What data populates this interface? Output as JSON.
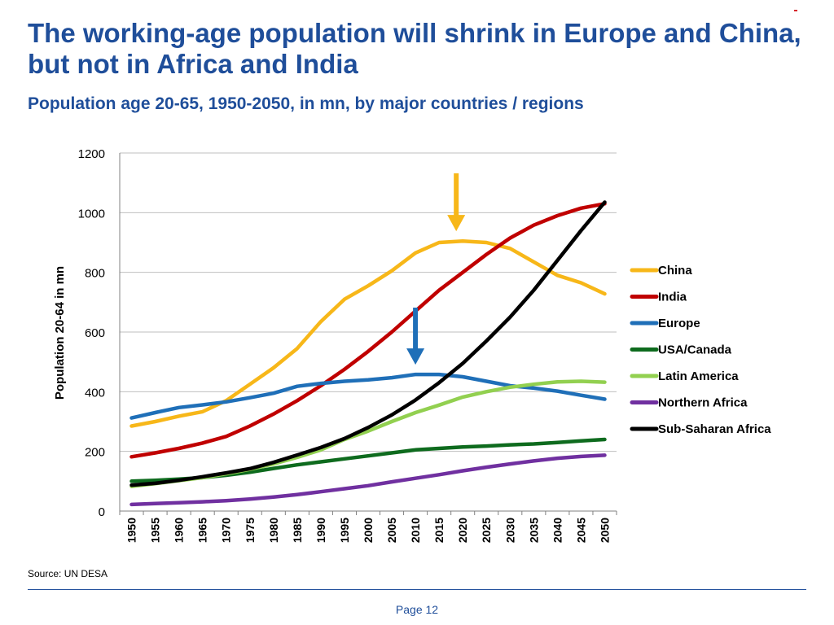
{
  "slide": {
    "title": "The working-age population will shrink in Europe and China, but not in Africa and India",
    "subtitle": "Population age 20-65, 1950-2050, in mn, by major countries / regions",
    "source": "Source: UN DESA",
    "page": "Page 12",
    "accent_color": "#1f4e9a"
  },
  "chart_data": {
    "type": "line",
    "title": "",
    "xlabel": "",
    "ylabel": "Population 20-64 in mn",
    "x": [
      1950,
      1955,
      1960,
      1965,
      1970,
      1975,
      1980,
      1985,
      1990,
      1995,
      2000,
      2005,
      2010,
      2015,
      2020,
      2025,
      2030,
      2035,
      2040,
      2045,
      2050
    ],
    "ylim": [
      0,
      1200
    ],
    "yticks": [
      0,
      200,
      400,
      600,
      800,
      1000,
      1200
    ],
    "grid": "horizontal",
    "legend": "right",
    "series": [
      {
        "name": "China",
        "color": "#f7b719",
        "values": [
          285,
          300,
          318,
          333,
          370,
          425,
          480,
          545,
          635,
          710,
          755,
          805,
          865,
          900,
          905,
          900,
          880,
          835,
          790,
          765,
          728
        ]
      },
      {
        "name": "India",
        "color": "#c00000",
        "values": [
          182,
          195,
          210,
          228,
          250,
          285,
          325,
          370,
          420,
          475,
          535,
          600,
          670,
          740,
          800,
          860,
          915,
          958,
          990,
          1015,
          1030
        ]
      },
      {
        "name": "Europe",
        "color": "#1f6fb8",
        "values": [
          312,
          330,
          347,
          356,
          366,
          380,
          395,
          418,
          428,
          435,
          440,
          447,
          458,
          458,
          450,
          435,
          420,
          412,
          402,
          388,
          375
        ]
      },
      {
        "name": "USA/Canada",
        "color": "#0e6b1e",
        "values": [
          100,
          103,
          107,
          112,
          120,
          130,
          143,
          155,
          165,
          175,
          185,
          195,
          205,
          210,
          215,
          218,
          222,
          225,
          230,
          235,
          240
        ]
      },
      {
        "name": "Latin America",
        "color": "#92d050",
        "values": [
          83,
          92,
          102,
          112,
          125,
          140,
          158,
          180,
          205,
          240,
          268,
          300,
          330,
          355,
          382,
          400,
          415,
          425,
          433,
          435,
          432
        ]
      },
      {
        "name": "Northern Africa",
        "color": "#7030a0",
        "values": [
          22,
          25,
          28,
          31,
          35,
          40,
          47,
          55,
          65,
          75,
          85,
          98,
          110,
          122,
          135,
          147,
          158,
          168,
          177,
          183,
          187
        ]
      },
      {
        "name": "Sub-Saharan Africa",
        "color": "#000000",
        "values": [
          87,
          93,
          103,
          115,
          128,
          142,
          163,
          188,
          213,
          243,
          280,
          322,
          372,
          430,
          495,
          570,
          650,
          740,
          840,
          940,
          1035
        ]
      }
    ],
    "annotations": [
      {
        "type": "arrow",
        "color": "#f7b719",
        "series": "China",
        "x": 2020
      },
      {
        "type": "arrow",
        "color": "#1f6fb8",
        "series": "Europe",
        "x": 2010
      }
    ]
  }
}
